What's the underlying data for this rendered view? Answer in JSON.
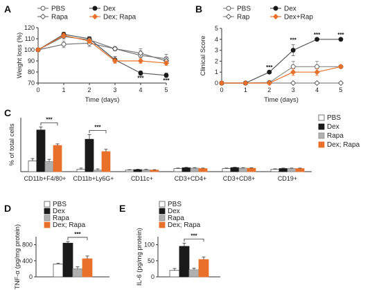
{
  "colors": {
    "pbs": "#ffffff",
    "dex": "#1a1a1a",
    "rapa": "#b0b0b0",
    "dex_rapa": "#e8702a",
    "line_gray": "#888888",
    "error": "#333333"
  },
  "chart_data": [
    {
      "panel": "A",
      "type": "line",
      "xlabel": "Time (days)",
      "ylabel": "Weight loss (%)",
      "x": [
        0,
        1,
        2,
        3,
        4,
        5
      ],
      "xlim": [
        0,
        5
      ],
      "ylim": [
        70,
        120
      ],
      "yticks": [
        70,
        80,
        90,
        100,
        110,
        120
      ],
      "xticks": [
        0,
        1,
        2,
        3,
        4,
        5
      ],
      "legend": [
        "PBS",
        "Dex",
        "Rapa",
        "Dex; Rapa"
      ],
      "series": [
        {
          "name": "PBS",
          "values": [
            100,
            105,
            106,
            101,
            95,
            92
          ],
          "err": [
            0,
            3,
            3,
            2,
            4,
            4
          ]
        },
        {
          "name": "Dex",
          "values": [
            100,
            114,
            110,
            91,
            79,
            77
          ],
          "err": [
            0,
            2,
            2,
            3,
            2,
            2
          ]
        },
        {
          "name": "Rapa",
          "values": [
            100,
            112,
            109,
            101,
            97,
            90
          ],
          "err": [
            0,
            2,
            3,
            2,
            4,
            3
          ]
        },
        {
          "name": "Dex; Rapa",
          "values": [
            100,
            113,
            108,
            90,
            90,
            88
          ],
          "err": [
            0,
            2,
            2,
            2,
            2,
            2
          ]
        }
      ],
      "annotations": [
        {
          "x": 4,
          "text": "***"
        },
        {
          "x": 5,
          "text": "***"
        }
      ]
    },
    {
      "panel": "B",
      "type": "line",
      "xlabel": "Time (days)",
      "ylabel": "Clinical Score",
      "x": [
        0,
        1,
        2,
        3,
        4,
        5
      ],
      "xlim": [
        0,
        5
      ],
      "ylim": [
        0,
        5
      ],
      "yticks": [
        0,
        1,
        2,
        3,
        4,
        5
      ],
      "xticks": [
        0,
        1,
        2,
        3,
        4,
        5
      ],
      "legend": [
        "PBS",
        "Dex",
        "Rap",
        "Dex+Rap"
      ],
      "series": [
        {
          "name": "PBS",
          "values": [
            0,
            0,
            0.05,
            1.5,
            1.5,
            1.5
          ],
          "err": [
            0,
            0,
            0,
            0.5,
            0.5,
            0
          ]
        },
        {
          "name": "Dex",
          "values": [
            0,
            0,
            1,
            3,
            4,
            4
          ],
          "err": [
            0,
            0,
            0,
            0.5,
            0,
            0
          ]
        },
        {
          "name": "Rap",
          "values": [
            0,
            0,
            0,
            0,
            0,
            0
          ],
          "err": [
            0,
            0,
            0,
            0,
            0,
            0
          ]
        },
        {
          "name": "Dex+Rap",
          "values": [
            0,
            0,
            0,
            1,
            1,
            1.5
          ],
          "err": [
            0,
            0,
            0,
            0.3,
            0.3,
            0
          ]
        }
      ],
      "annotations": [
        {
          "x": 2,
          "text": "***"
        },
        {
          "x": 3,
          "text": "***"
        },
        {
          "x": 4,
          "text": "***"
        },
        {
          "x": 5,
          "text": "***"
        }
      ]
    },
    {
      "panel": "C",
      "type": "bar",
      "ylabel": "% of total cells",
      "ylim": [
        0,
        35
      ],
      "categories": [
        "CD11b+F4/80+",
        "CD11b+Ly6G+",
        "CD11c+",
        "CD3+CD4+",
        "CD3+CD8+",
        "CD19+"
      ],
      "legend": [
        "PBS",
        "Dex",
        "Rapa",
        "Dex; Rapa"
      ],
      "series": [
        {
          "name": "PBS",
          "values": [
            7,
            1.5,
            1,
            2,
            2,
            1.5
          ],
          "err": [
            1.5,
            0.8,
            0.3,
            0.3,
            0.3,
            0.3
          ]
        },
        {
          "name": "Dex",
          "values": [
            27,
            21,
            1.3,
            2.5,
            2.6,
            2
          ],
          "err": [
            2,
            3,
            0.3,
            0.3,
            0.3,
            0.3
          ]
        },
        {
          "name": "Rapa",
          "values": [
            6.5,
            1,
            1.2,
            2.3,
            2.3,
            2
          ],
          "err": [
            1.5,
            0.8,
            0.3,
            0.3,
            0.3,
            0.3
          ]
        },
        {
          "name": "Dex; Rapa",
          "values": [
            17,
            13,
            1,
            2,
            2.2,
            2
          ],
          "err": [
            1,
            1.5,
            0.3,
            0.3,
            0.3,
            0.3
          ]
        }
      ],
      "brackets": [
        {
          "category": 0,
          "from": 1,
          "to": 3,
          "text": "***"
        },
        {
          "category": 1,
          "from": 1,
          "to": 3,
          "text": "***"
        }
      ]
    },
    {
      "panel": "D",
      "type": "bar",
      "ylabel": "TNF-α (pg/mg protein)",
      "ylim": [
        0,
        1000
      ],
      "yticks": [
        0,
        400,
        800
      ],
      "legend": [
        "PBS",
        "Dex",
        "Rapa",
        "Dex; Rapa"
      ],
      "series": [
        {
          "name": "PBS",
          "values": [
            320
          ],
          "err": [
            20
          ]
        },
        {
          "name": "Dex",
          "values": [
            840
          ],
          "err": [
            40
          ]
        },
        {
          "name": "Rapa",
          "values": [
            200
          ],
          "err": [
            50
          ]
        },
        {
          "name": "Dex; Rapa",
          "values": [
            450
          ],
          "err": [
            70
          ]
        }
      ],
      "brackets": [
        {
          "from": 1,
          "to": 3,
          "text": "***"
        }
      ]
    },
    {
      "panel": "E",
      "type": "bar",
      "ylabel": "IL-6 (pg/mg protein)",
      "ylim": [
        0,
        125
      ],
      "yticks": [
        0,
        50,
        100
      ],
      "legend": [
        "PBS",
        "Dex",
        "Rapa",
        "Dex; Rapa"
      ],
      "series": [
        {
          "name": "PBS",
          "values": [
            20
          ],
          "err": [
            6
          ]
        },
        {
          "name": "Dex",
          "values": [
            95
          ],
          "err": [
            10
          ]
        },
        {
          "name": "Rapa",
          "values": [
            22
          ],
          "err": [
            5
          ]
        },
        {
          "name": "Dex; Rapa",
          "values": [
            54
          ],
          "err": [
            8
          ]
        }
      ],
      "brackets": [
        {
          "from": 1,
          "to": 3,
          "text": "***"
        }
      ]
    }
  ]
}
